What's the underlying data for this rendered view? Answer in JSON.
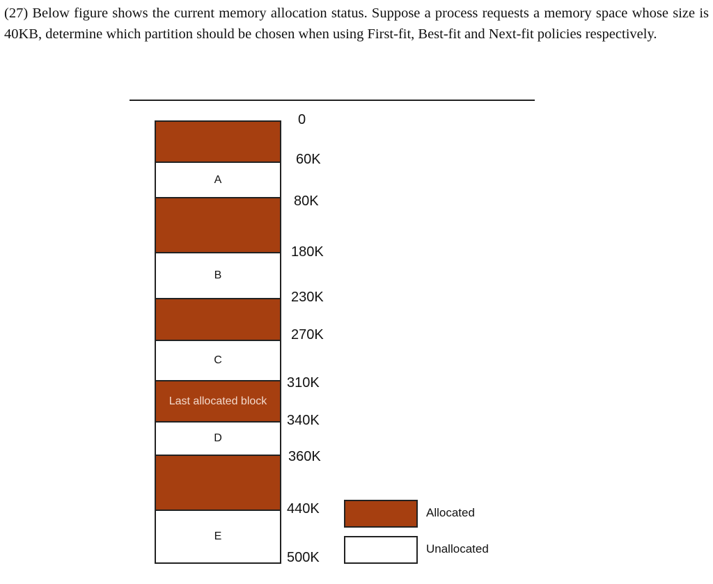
{
  "question": "(27) Below figure shows the current memory allocation status. Suppose a process requests a memory space whose size is 40KB, determine which partition should be chosen when using First-fit, Best-fit and Next-fit policies respectively.",
  "colors": {
    "allocated": "#a63f10",
    "unallocated": "#ffffff"
  },
  "blocks": [
    {
      "label": "",
      "status": "allocated",
      "start": "0",
      "end": "60K"
    },
    {
      "label": "A",
      "status": "unallocated",
      "start": "60K",
      "end": "80K"
    },
    {
      "label": "",
      "status": "allocated",
      "start": "80K",
      "end": "180K"
    },
    {
      "label": "B",
      "status": "unallocated",
      "start": "180K",
      "end": "230K"
    },
    {
      "label": "",
      "status": "allocated",
      "start": "230K",
      "end": "270K"
    },
    {
      "label": "C",
      "status": "unallocated",
      "start": "270K",
      "end": "310K"
    },
    {
      "label": "Last allocated block",
      "status": "allocated",
      "start": "310K",
      "end": "340K"
    },
    {
      "label": "D",
      "status": "unallocated",
      "start": "340K",
      "end": "360K"
    },
    {
      "label": "",
      "status": "allocated",
      "start": "360K",
      "end": "440K"
    },
    {
      "label": "E",
      "status": "unallocated",
      "start": "440K",
      "end": "500K"
    }
  ],
  "addresses": [
    "0",
    "60K",
    "80K",
    "180K",
    "230K",
    "270K",
    "310K",
    "340K",
    "360K",
    "440K",
    "500K"
  ],
  "legend": {
    "allocated": "Allocated",
    "unallocated": "Unallocated"
  }
}
